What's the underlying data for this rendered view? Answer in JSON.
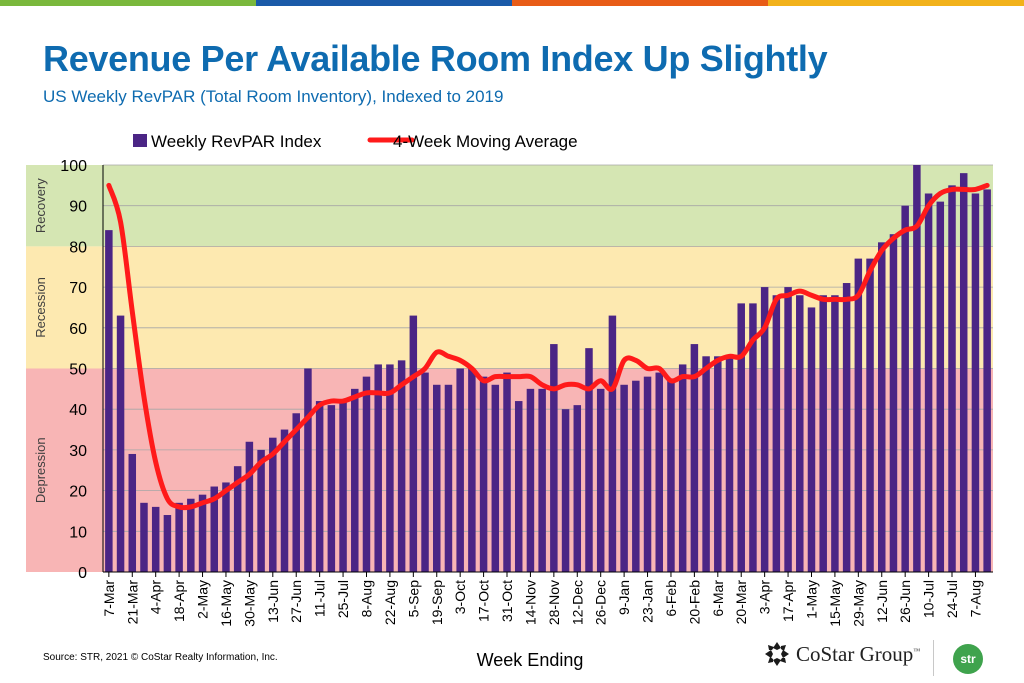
{
  "header": {
    "title": "Revenue Per Available Room Index Up Slightly",
    "subtitle": "US Weekly RevPAR (Total Room Inventory), Indexed to 2019"
  },
  "colors": {
    "title": "#0e6bb0",
    "bar": "#4b2585",
    "line": "#ff1a1a",
    "zone_recovery": "#d5e6b3",
    "zone_recession": "#fde9b0",
    "zone_depression": "#f8b5b5",
    "topbar": [
      "#7ab83c",
      "#1a5aa8",
      "#e85c17",
      "#f2b21b"
    ]
  },
  "chart_data": {
    "type": "bar",
    "title": "",
    "xlabel": "Week Ending",
    "ylabel": "",
    "ylim": [
      0,
      100
    ],
    "yticks": [
      0,
      10,
      20,
      30,
      40,
      50,
      60,
      70,
      80,
      90,
      100
    ],
    "grid": true,
    "legend_position": "top",
    "zones": [
      {
        "label": "Recovery",
        "from": 80,
        "to": 100
      },
      {
        "label": "Recession",
        "from": 50,
        "to": 80
      },
      {
        "label": "Depression",
        "from": 0,
        "to": 50
      }
    ],
    "tick_labels": [
      "7-Mar",
      "21-Mar",
      "4-Apr",
      "18-Apr",
      "2-May",
      "16-May",
      "30-May",
      "13-Jun",
      "27-Jun",
      "11-Jul",
      "25-Jul",
      "8-Aug",
      "22-Aug",
      "5-Sep",
      "19-Sep",
      "3-Oct",
      "17-Oct",
      "31-Oct",
      "14-Nov",
      "28-Nov",
      "12-Dec",
      "26-Dec",
      "9-Jan",
      "23-Jan",
      "6-Feb",
      "20-Feb",
      "6-Mar",
      "20-Mar",
      "3-Apr",
      "17-Apr",
      "1-May",
      "15-May",
      "29-May",
      "12-Jun",
      "26-Jun",
      "10-Jul",
      "24-Jul",
      "7-Aug"
    ],
    "series": [
      {
        "name": "Weekly RevPAR Index",
        "type": "bar",
        "values": [
          84,
          63,
          29,
          17,
          16,
          14,
          17,
          18,
          19,
          21,
          22,
          26,
          32,
          30,
          33,
          35,
          39,
          50,
          42,
          41,
          42,
          45,
          48,
          51,
          51,
          52,
          63,
          49,
          46,
          46,
          50,
          50,
          48,
          46,
          49,
          42,
          45,
          45,
          56,
          40,
          41,
          55,
          45,
          63,
          46,
          47,
          48,
          49,
          47,
          51,
          56,
          53,
          53,
          53,
          66,
          66,
          70,
          68,
          70,
          68,
          65,
          68,
          68,
          71,
          77,
          77,
          81,
          83,
          90,
          100,
          93,
          91,
          95,
          98,
          93,
          94
        ]
      },
      {
        "name": "4-Week Moving Average",
        "type": "line",
        "values": [
          95,
          86,
          64,
          43,
          27,
          18,
          16,
          16,
          17,
          18,
          20,
          22,
          24,
          27,
          29,
          32,
          35,
          38,
          41,
          42,
          42,
          43,
          44,
          44,
          44,
          46,
          48,
          50,
          54,
          53,
          52,
          50,
          47,
          48,
          48,
          48,
          48,
          46,
          45,
          46,
          46,
          45,
          47,
          45,
          52,
          52,
          50,
          50,
          47,
          48,
          48,
          50,
          52,
          53,
          53,
          57,
          60,
          67,
          68,
          69,
          68,
          67,
          67,
          67,
          68,
          74,
          79,
          82,
          84,
          85,
          90,
          93,
          94,
          94,
          94,
          95
        ]
      }
    ]
  },
  "footer": {
    "source": "Source: STR, 2021 © CoStar Realty Information, Inc.",
    "logo_text": "CoStar Group",
    "logo_tm": "™",
    "badge": "str"
  }
}
